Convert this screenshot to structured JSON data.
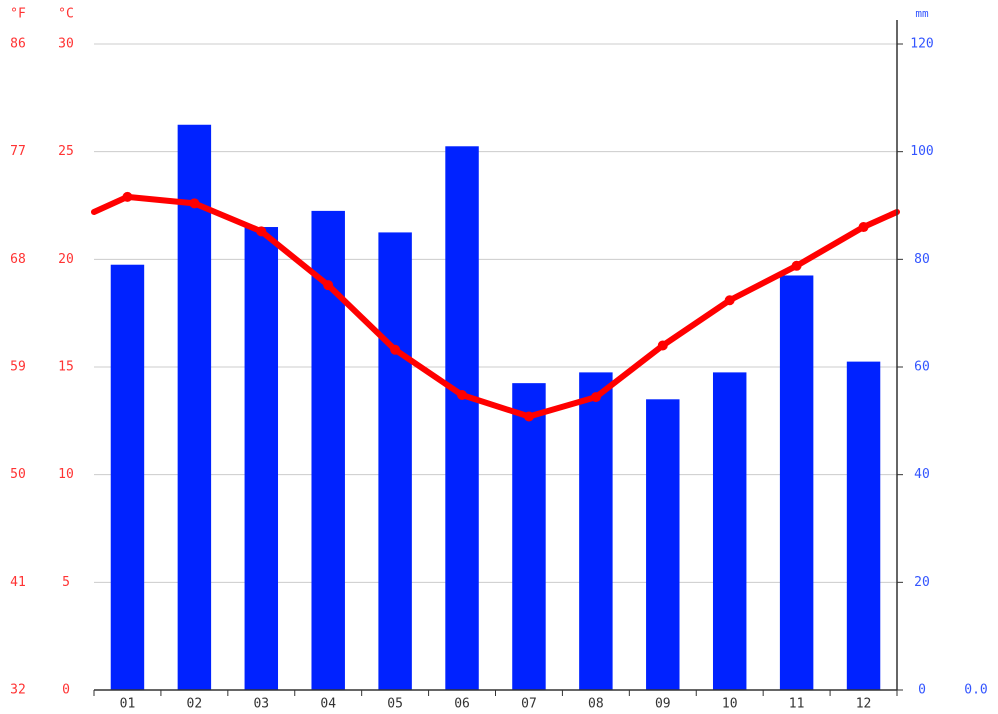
{
  "chart_data": {
    "type": "bar",
    "y_f_label": "°F",
    "y_label": "°C",
    "y2_label": "mm",
    "annotation": "0.0",
    "categories": [
      "01",
      "02",
      "03",
      "04",
      "05",
      "06",
      "07",
      "08",
      "09",
      "10",
      "11",
      "12"
    ],
    "series": [
      {
        "type": "bar",
        "axis": "y2",
        "color": "#0022ff",
        "values": [
          79,
          105,
          86,
          89,
          85,
          101,
          57,
          59,
          54,
          59,
          77,
          61
        ]
      },
      {
        "type": "line",
        "axis": "y",
        "color": "#ff0000",
        "values": [
          22.9,
          22.6,
          21.3,
          18.8,
          15.8,
          13.7,
          12.7,
          13.6,
          16.0,
          18.1,
          19.7,
          21.5
        ]
      }
    ],
    "ylim": [
      0,
      30
    ],
    "yticks": [
      0,
      5,
      10,
      15,
      20,
      25,
      30
    ],
    "y_f_lim": [
      32,
      86
    ],
    "y_f_ticks": [
      32,
      41,
      50,
      59,
      68,
      77,
      86
    ],
    "y2lim": [
      0,
      120
    ],
    "y2ticks": [
      0,
      20,
      40,
      60,
      80,
      100,
      120
    ],
    "grid": true
  }
}
